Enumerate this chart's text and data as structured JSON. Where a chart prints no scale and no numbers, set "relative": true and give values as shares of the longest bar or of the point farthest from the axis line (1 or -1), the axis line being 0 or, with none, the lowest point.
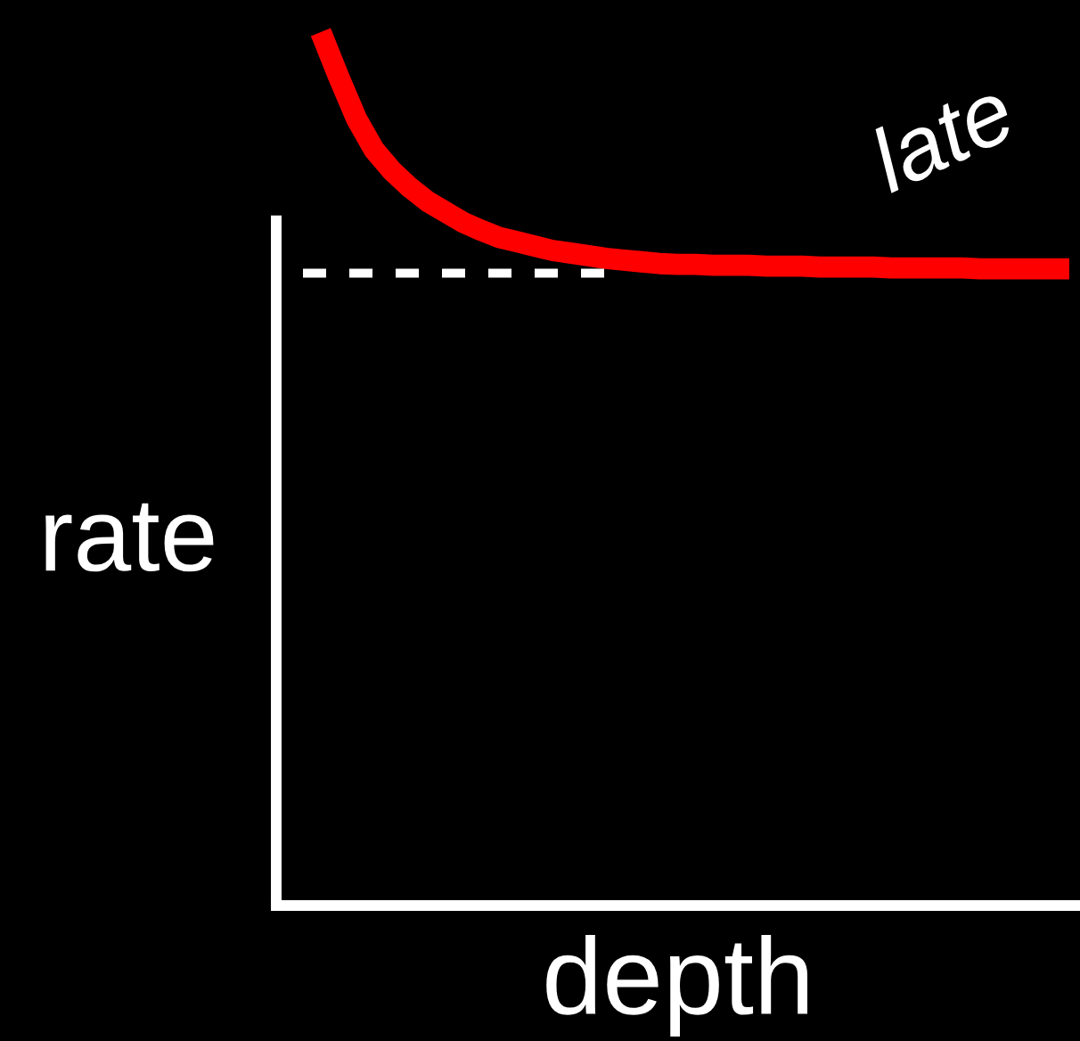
{
  "chart_data": {
    "type": "line",
    "xlabel": "depth",
    "ylabel": "rate",
    "relative": true,
    "categories": [
      null,
      null,
      null,
      null,
      null,
      null,
      null,
      null,
      null,
      null,
      null,
      null,
      null,
      null,
      null,
      null,
      null,
      null,
      null,
      null,
      null,
      null,
      null,
      null,
      null,
      null,
      null,
      null,
      null,
      null,
      null,
      null,
      null,
      null,
      null,
      null,
      null,
      null,
      null,
      null,
      null,
      null,
      null,
      null
    ],
    "series": [
      {
        "name": "late",
        "color": "#ff0000",
        "values": [
          null,
          1.0,
          0.949,
          0.901,
          0.865,
          0.841,
          0.822,
          0.806,
          0.794,
          0.782,
          0.773,
          0.765,
          0.76,
          0.755,
          0.75,
          0.747,
          0.744,
          0.741,
          0.739,
          0.737,
          0.735,
          0.734,
          0.734,
          0.733,
          0.733,
          0.733,
          0.732,
          0.732,
          0.732,
          0.731,
          0.731,
          0.731,
          0.731,
          0.73,
          0.73,
          0.73,
          0.73,
          0.73,
          0.729,
          0.729,
          0.729,
          0.729,
          0.729,
          0.729
        ]
      },
      {
        "color": "#ffffff",
        "line_style": "dashed",
        "values": [
          0.724,
          0.724,
          0.724,
          0.724,
          0.724,
          0.724,
          0.724,
          0.724,
          0.724,
          0.724,
          0.724,
          0.724,
          0.724,
          0.724,
          0.724,
          0.724,
          0.724,
          0.724,
          null,
          null,
          null,
          null,
          null,
          null,
          null,
          null,
          null,
          null,
          null,
          null,
          null,
          null,
          null,
          null,
          null,
          null,
          null,
          null,
          null,
          null,
          null,
          null,
          null,
          null
        ]
      }
    ]
  }
}
